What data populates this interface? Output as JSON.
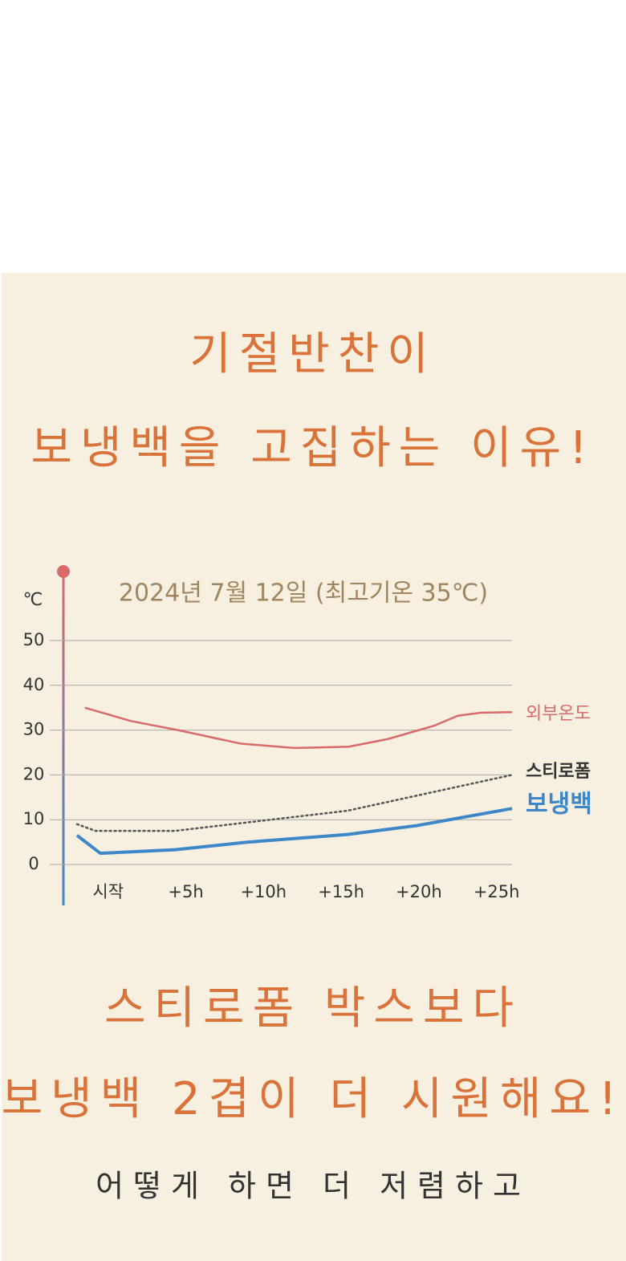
{
  "headline": {
    "lines": [
      "기절반찬이",
      "보냉백을 고집하는 이유!"
    ]
  },
  "chart_data": {
    "type": "line",
    "title": "2024년 7월 12일 (최고기온 35℃)",
    "ylabel": "℃",
    "ylim": [
      0,
      50
    ],
    "yticks": [
      0,
      10,
      20,
      30,
      40,
      50
    ],
    "xlim": [
      -2,
      26
    ],
    "xticks": [
      {
        "value": 0,
        "label": "시작"
      },
      {
        "value": 5,
        "label": "+5h"
      },
      {
        "value": 10,
        "label": "+10h"
      },
      {
        "value": 15,
        "label": "+15h"
      },
      {
        "value": 20,
        "label": "+20h"
      },
      {
        "value": 25,
        "label": "+25h"
      }
    ],
    "grid": true,
    "series": [
      {
        "name": "외부온도",
        "color": "#d86a6a",
        "x": [
          -1.5,
          1.5,
          4.5,
          8.5,
          12,
          15.5,
          18,
          21,
          22.5,
          24,
          26
        ],
        "values": [
          35,
          32,
          30,
          27,
          26,
          26.3,
          28,
          31,
          33.2,
          33.9,
          34
        ]
      },
      {
        "name": "스티로폼",
        "color": "#555555",
        "x": [
          -2,
          -0.8,
          4.3,
          15.4,
          26
        ],
        "values": [
          9,
          7.5,
          7.5,
          12,
          20
        ]
      },
      {
        "name": "보냉백",
        "color": "#3d87c9",
        "x": [
          -2,
          -0.5,
          4.3,
          9,
          15.4,
          19.9,
          26
        ],
        "values": [
          6.5,
          2.5,
          3.3,
          5,
          6.7,
          8.7,
          12.5
        ]
      }
    ]
  },
  "subhead": {
    "lines": [
      "스티로폼 박스보다",
      "보냉백 2겹이 더 시원해요!"
    ]
  },
  "body": {
    "lines": [
      "어떻게 하면 더 저렴하고"
    ]
  }
}
